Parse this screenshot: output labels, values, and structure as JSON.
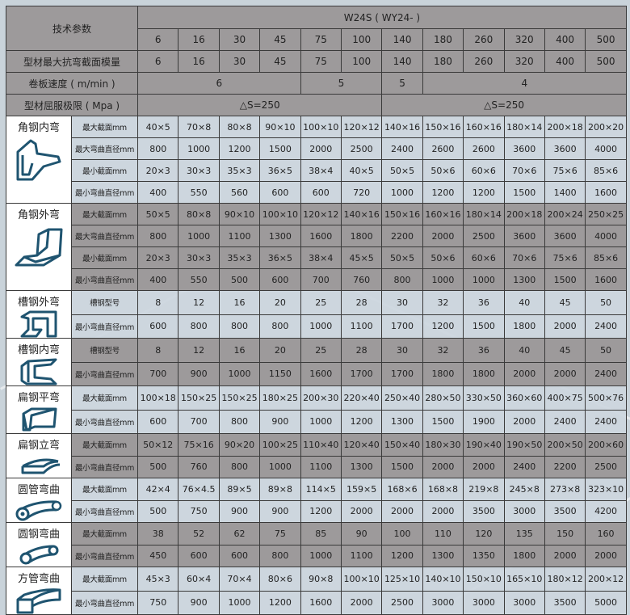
{
  "header": {
    "title": "技术参数",
    "model": "W24S ( WY24- )",
    "columns": [
      "6",
      "16",
      "30",
      "45",
      "75",
      "100",
      "140",
      "180",
      "260",
      "320",
      "400",
      "500"
    ],
    "modulus_label": "型材最大抗弯截面模量",
    "modulus": [
      "6",
      "16",
      "30",
      "45",
      "75",
      "100",
      "140",
      "180",
      "260",
      "320",
      "400",
      "500"
    ],
    "speed_label": "卷板速度 ( m/min )",
    "speed": [
      {
        "value": "6",
        "span": 4
      },
      {
        "value": "5",
        "span": 2
      },
      {
        "value": "5",
        "span": 1
      },
      {
        "value": "4",
        "span": 5
      }
    ],
    "yield_label": "型材屈服极限 ( Mpa )",
    "yield": [
      {
        "value": "△S=250",
        "span": 6
      },
      {
        "value": "△S=250",
        "span": 6
      }
    ]
  },
  "groups": [
    {
      "label": "角钢内弯",
      "icon": "angle-inner-bend-icon",
      "shade": "light",
      "rows": [
        {
          "label": "最大截面mm",
          "values": [
            "40×5",
            "70×8",
            "80×8",
            "90×10",
            "100×10",
            "120×12",
            "140×16",
            "150×16",
            "160×16",
            "180×14",
            "200×18",
            "200×20"
          ]
        },
        {
          "label": "最大弯曲直径mm",
          "values": [
            "800",
            "1000",
            "1200",
            "1500",
            "2000",
            "2500",
            "2400",
            "2600",
            "2600",
            "3600",
            "3600",
            "4000"
          ]
        },
        {
          "label": "最小截面mm",
          "values": [
            "20×3",
            "30×3",
            "35×3",
            "36×5",
            "38×4",
            "40×5",
            "50×5",
            "50×6",
            "60×6",
            "70×6",
            "75×6",
            "85×6"
          ]
        },
        {
          "label": "最小弯曲直径mm",
          "values": [
            "400",
            "550",
            "560",
            "600",
            "600",
            "720",
            "1000",
            "1200",
            "1200",
            "1500",
            "1400",
            "1600"
          ]
        }
      ]
    },
    {
      "label": "角钢外弯",
      "icon": "angle-outer-bend-icon",
      "shade": "dark",
      "rows": [
        {
          "label": "最大截面mm",
          "values": [
            "50×5",
            "80×8",
            "90×10",
            "100×10",
            "120×12",
            "140×16",
            "150×16",
            "160×16",
            "180×14",
            "200×18",
            "200×24",
            "250×25"
          ]
        },
        {
          "label": "最大弯曲直径mm",
          "values": [
            "800",
            "1000",
            "1100",
            "1300",
            "1600",
            "1800",
            "2200",
            "2000",
            "2500",
            "3600",
            "3600",
            "4000"
          ]
        },
        {
          "label": "最小截面mm",
          "values": [
            "20×3",
            "30×3",
            "35×3",
            "36×5",
            "38×4",
            "45×5",
            "50×5",
            "50×6",
            "60×6",
            "70×6",
            "75×6",
            "85×6"
          ]
        },
        {
          "label": "最小弯曲直径mm",
          "values": [
            "400",
            "550",
            "500",
            "600",
            "700",
            "760",
            "800",
            "1000",
            "1000",
            "1300",
            "1500",
            "1600"
          ]
        }
      ]
    },
    {
      "label": "槽钢外弯",
      "icon": "channel-outer-bend-icon",
      "shade": "light",
      "rows": [
        {
          "label": "槽钢型号",
          "values": [
            "8",
            "12",
            "16",
            "20",
            "25",
            "28",
            "30",
            "32",
            "36",
            "40",
            "45",
            "50"
          ]
        },
        {
          "label": "最小弯曲直径mm",
          "values": [
            "600",
            "800",
            "800",
            "800",
            "1000",
            "1100",
            "1700",
            "1200",
            "1500",
            "1800",
            "2000",
            "2400"
          ]
        }
      ]
    },
    {
      "label": "槽钢内弯",
      "icon": "channel-inner-bend-icon",
      "shade": "dark",
      "rows": [
        {
          "label": "槽钢型号",
          "values": [
            "8",
            "12",
            "16",
            "20",
            "25",
            "28",
            "30",
            "32",
            "36",
            "40",
            "45",
            "50"
          ]
        },
        {
          "label": "最小弯曲直径mm",
          "values": [
            "700",
            "900",
            "1000",
            "1150",
            "1600",
            "1700",
            "1700",
            "1800",
            "1800",
            "2000",
            "2000",
            "2400"
          ]
        }
      ]
    },
    {
      "label": "扁钢平弯",
      "icon": "flat-bar-flat-bend-icon",
      "shade": "light",
      "rows": [
        {
          "label": "最大截面mm",
          "values": [
            "100×18",
            "150×25",
            "150×25",
            "180×25",
            "200×30",
            "220×40",
            "250×40",
            "280×50",
            "330×50",
            "360×60",
            "400×75",
            "500×76"
          ]
        },
        {
          "label": "最小弯曲直径mm",
          "values": [
            "600",
            "700",
            "800",
            "900",
            "1000",
            "1200",
            "1300",
            "1500",
            "1900",
            "2000",
            "2400",
            "2400"
          ]
        }
      ]
    },
    {
      "label": "扁钢立弯",
      "icon": "flat-bar-edge-bend-icon",
      "shade": "dark",
      "rows": [
        {
          "label": "最大截面mm",
          "values": [
            "50×12",
            "75×16",
            "90×20",
            "100×25",
            "110×40",
            "120×40",
            "150×40",
            "180×30",
            "190×40",
            "190×50",
            "200×50",
            "200×60"
          ]
        },
        {
          "label": "最小弯曲直径mm",
          "values": [
            "500",
            "760",
            "800",
            "1000",
            "1100",
            "1300",
            "1500",
            "2000",
            "2000",
            "2400",
            "2200",
            "2500"
          ]
        }
      ]
    },
    {
      "label": "圆管弯曲",
      "icon": "round-tube-bend-icon",
      "shade": "light",
      "rows": [
        {
          "label": "最大截面mm",
          "values": [
            "42×4",
            "76×4.5",
            "89×5",
            "89×8",
            "114×5",
            "159×5",
            "168×6",
            "168×8",
            "219×8",
            "245×8",
            "273×8",
            "323×10"
          ]
        },
        {
          "label": "最小弯曲直径mm",
          "values": [
            "500",
            "750",
            "900",
            "900",
            "1200",
            "2000",
            "2000",
            "2000",
            "3500",
            "3000",
            "3500",
            "4200"
          ]
        }
      ]
    },
    {
      "label": "圆钢弯曲",
      "icon": "round-bar-bend-icon",
      "shade": "dark",
      "rows": [
        {
          "label": "最大截面mm",
          "values": [
            "38",
            "52",
            "62",
            "75",
            "85",
            "90",
            "100",
            "110",
            "120",
            "135",
            "150",
            "160"
          ]
        },
        {
          "label": "最小弯曲直径mm",
          "values": [
            "450",
            "600",
            "600",
            "800",
            "1000",
            "1100",
            "1200",
            "1300",
            "1350",
            "1800",
            "2000",
            "2000"
          ]
        }
      ]
    },
    {
      "label": "方管弯曲",
      "icon": "square-tube-bend-icon",
      "shade": "light",
      "rows": [
        {
          "label": "最大截面mm",
          "values": [
            "45×3",
            "60×4",
            "70×4",
            "80×6",
            "90×8",
            "100×10",
            "125×10",
            "140×10",
            "150×10",
            "165×10",
            "180×12",
            "200×12"
          ]
        },
        {
          "label": "最小弯曲直径mm",
          "values": [
            "750",
            "900",
            "1000",
            "1200",
            "1600",
            "2000",
            "2500",
            "3000",
            "3000",
            "3000",
            "3500",
            "5000"
          ]
        }
      ]
    }
  ],
  "colors": {
    "header_gray": "#9d9a9b",
    "light_row": "#cdd6de",
    "icon_stroke": "#1f5470",
    "background": "#c9d3da"
  }
}
